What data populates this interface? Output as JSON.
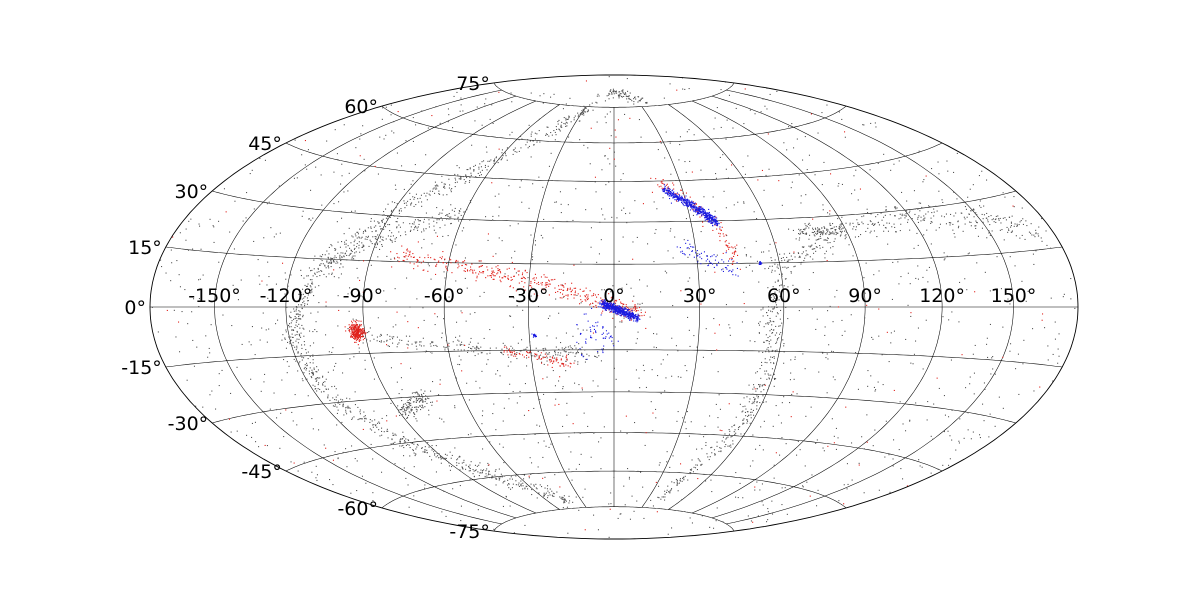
{
  "chart_data": {
    "type": "scatter",
    "projection": "hammer-aitoff",
    "grid": true,
    "xtick_labels": [
      "-150°",
      "-120°",
      "-90°",
      "-60°",
      "-30°",
      "0°",
      "30°",
      "60°",
      "90°",
      "120°",
      "150°"
    ],
    "ytick_labels": [
      "-75°",
      "-60°",
      "-45°",
      "-30°",
      "-15°",
      "0°",
      "15°",
      "30°",
      "45°",
      "60°",
      "75°"
    ],
    "xlim": [
      -180,
      180
    ],
    "ylim": [
      -90,
      90
    ],
    "colors": {
      "background_stars": "#555555",
      "series_red": "#e0201a",
      "series_blue": "#1a1ae0",
      "grid": "#000000"
    },
    "series": [
      {
        "color": "#555555",
        "features": [
          {
            "kind": "great-circle-band",
            "points": [
              [
                -22,
                78
              ],
              [
                -60,
                52
              ],
              [
                -90,
                32
              ],
              [
                -110,
                10
              ],
              [
                -118,
                -10
              ],
              [
                -115,
                -28
              ],
              [
                -100,
                -45
              ],
              [
                -75,
                -60
              ],
              [
                -40,
                -72
              ]
            ],
            "count": 900,
            "spread": 2.2
          },
          {
            "kind": "great-circle-band",
            "points": [
              [
                40,
                -70
              ],
              [
                55,
                -45
              ],
              [
                58,
                -25
              ],
              [
                55,
                -5
              ],
              [
                60,
                15
              ],
              [
                90,
                25
              ],
              [
                120,
                28
              ],
              [
                150,
                25
              ],
              [
                175,
                20
              ]
            ],
            "count": 650,
            "spread": 2.0
          },
          {
            "kind": "band",
            "points": [
              [
                -60,
                32
              ],
              [
                -75,
                28
              ],
              [
                -95,
                20
              ],
              [
                -108,
                12
              ]
            ],
            "count": 200,
            "spread": 1.8
          },
          {
            "kind": "band",
            "points": [
              [
                -90,
                -10
              ],
              [
                -60,
                -13
              ],
              [
                -30,
                -16
              ],
              [
                -5,
                -16
              ]
            ],
            "count": 220,
            "spread": 1.4
          },
          {
            "kind": "band",
            "points": [
              [
                -75,
                -30
              ],
              [
                -82,
                -33
              ],
              [
                -90,
                -35
              ]
            ],
            "count": 130,
            "spread": 1.5
          },
          {
            "kind": "band",
            "points": [
              [
                70,
                25
              ],
              [
                80,
                25
              ],
              [
                90,
                26
              ]
            ],
            "count": 110,
            "spread": 1.2
          },
          {
            "kind": "band",
            "points": [
              [
                -10,
                82
              ],
              [
                20,
                80
              ],
              [
                40,
                78
              ]
            ],
            "count": 80,
            "spread": 1.5
          },
          {
            "kind": "uniform",
            "count": 1500
          }
        ]
      },
      {
        "color": "#e0201a",
        "features": [
          {
            "kind": "band",
            "points": [
              [
                -80,
                17
              ],
              [
                -50,
                13
              ],
              [
                -25,
                8
              ],
              [
                -5,
                2
              ],
              [
                8,
                -2
              ]
            ],
            "count": 420,
            "spread": 1.6
          },
          {
            "kind": "cluster",
            "center": [
              -93,
              -8
            ],
            "count": 260,
            "spread": 1.4
          },
          {
            "kind": "band",
            "points": [
              [
                -40,
                -15
              ],
              [
                -25,
                -18
              ],
              [
                -15,
                -20
              ]
            ],
            "count": 90,
            "spread": 0.9
          },
          {
            "kind": "band",
            "points": [
              [
                20,
                45
              ],
              [
                30,
                38
              ],
              [
                38,
                30
              ],
              [
                42,
                22
              ],
              [
                45,
                15
              ]
            ],
            "count": 120,
            "spread": 1.5
          },
          {
            "kind": "uniform",
            "count": 140
          }
        ]
      },
      {
        "color": "#1a1ae0",
        "features": [
          {
            "kind": "band",
            "points": [
              [
                -4,
                1
              ],
              [
                0,
                -0.5
              ],
              [
                4,
                -2
              ],
              [
                8,
                -4
              ]
            ],
            "count": 520,
            "spread": 0.7
          },
          {
            "kind": "band",
            "points": [
              [
                22,
                42
              ],
              [
                30,
                37
              ],
              [
                36,
                33
              ],
              [
                40,
                29
              ]
            ],
            "count": 480,
            "spread": 0.8
          },
          {
            "kind": "band",
            "points": [
              [
                25,
                22
              ],
              [
                32,
                18
              ],
              [
                38,
                15
              ],
              [
                44,
                12
              ]
            ],
            "count": 70,
            "spread": 1.6
          },
          {
            "kind": "band",
            "points": [
              [
                -10,
                -5
              ],
              [
                -5,
                -8
              ],
              [
                0,
                -12
              ],
              [
                -15,
                -15
              ]
            ],
            "count": 60,
            "spread": 2.0
          },
          {
            "kind": "cluster",
            "center": [
              -28,
              -10
            ],
            "count": 18,
            "spread": 0.3
          },
          {
            "kind": "cluster",
            "center": [
              53,
              15
            ],
            "count": 18,
            "spread": 0.3
          }
        ]
      }
    ]
  }
}
